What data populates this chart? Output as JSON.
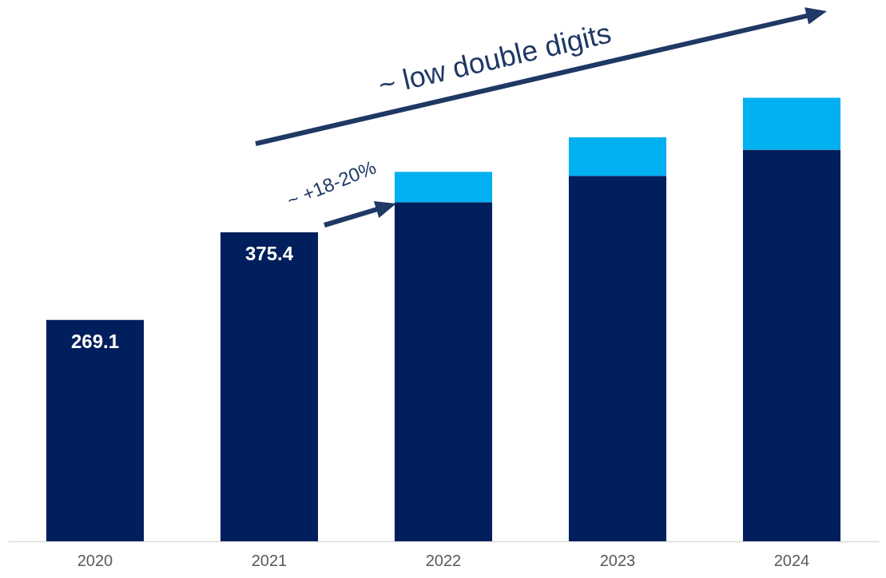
{
  "chart_data": {
    "type": "bar",
    "stacked": true,
    "categories": [
      "2020",
      "2021",
      "2022",
      "2023",
      "2024"
    ],
    "series": [
      {
        "color": "#001f5c",
        "values": [
          269.1,
          375.4,
          412,
          444,
          476
        ],
        "value_labels": [
          "269.1",
          "375.4",
          null,
          null,
          null
        ]
      },
      {
        "color": "#00b0f0",
        "values": [
          null,
          null,
          37,
          47,
          63
        ]
      }
    ],
    "tick_labels": "x",
    "grid": false,
    "annotations": [
      "~ low double digits",
      "~ +18-20%"
    ]
  }
}
